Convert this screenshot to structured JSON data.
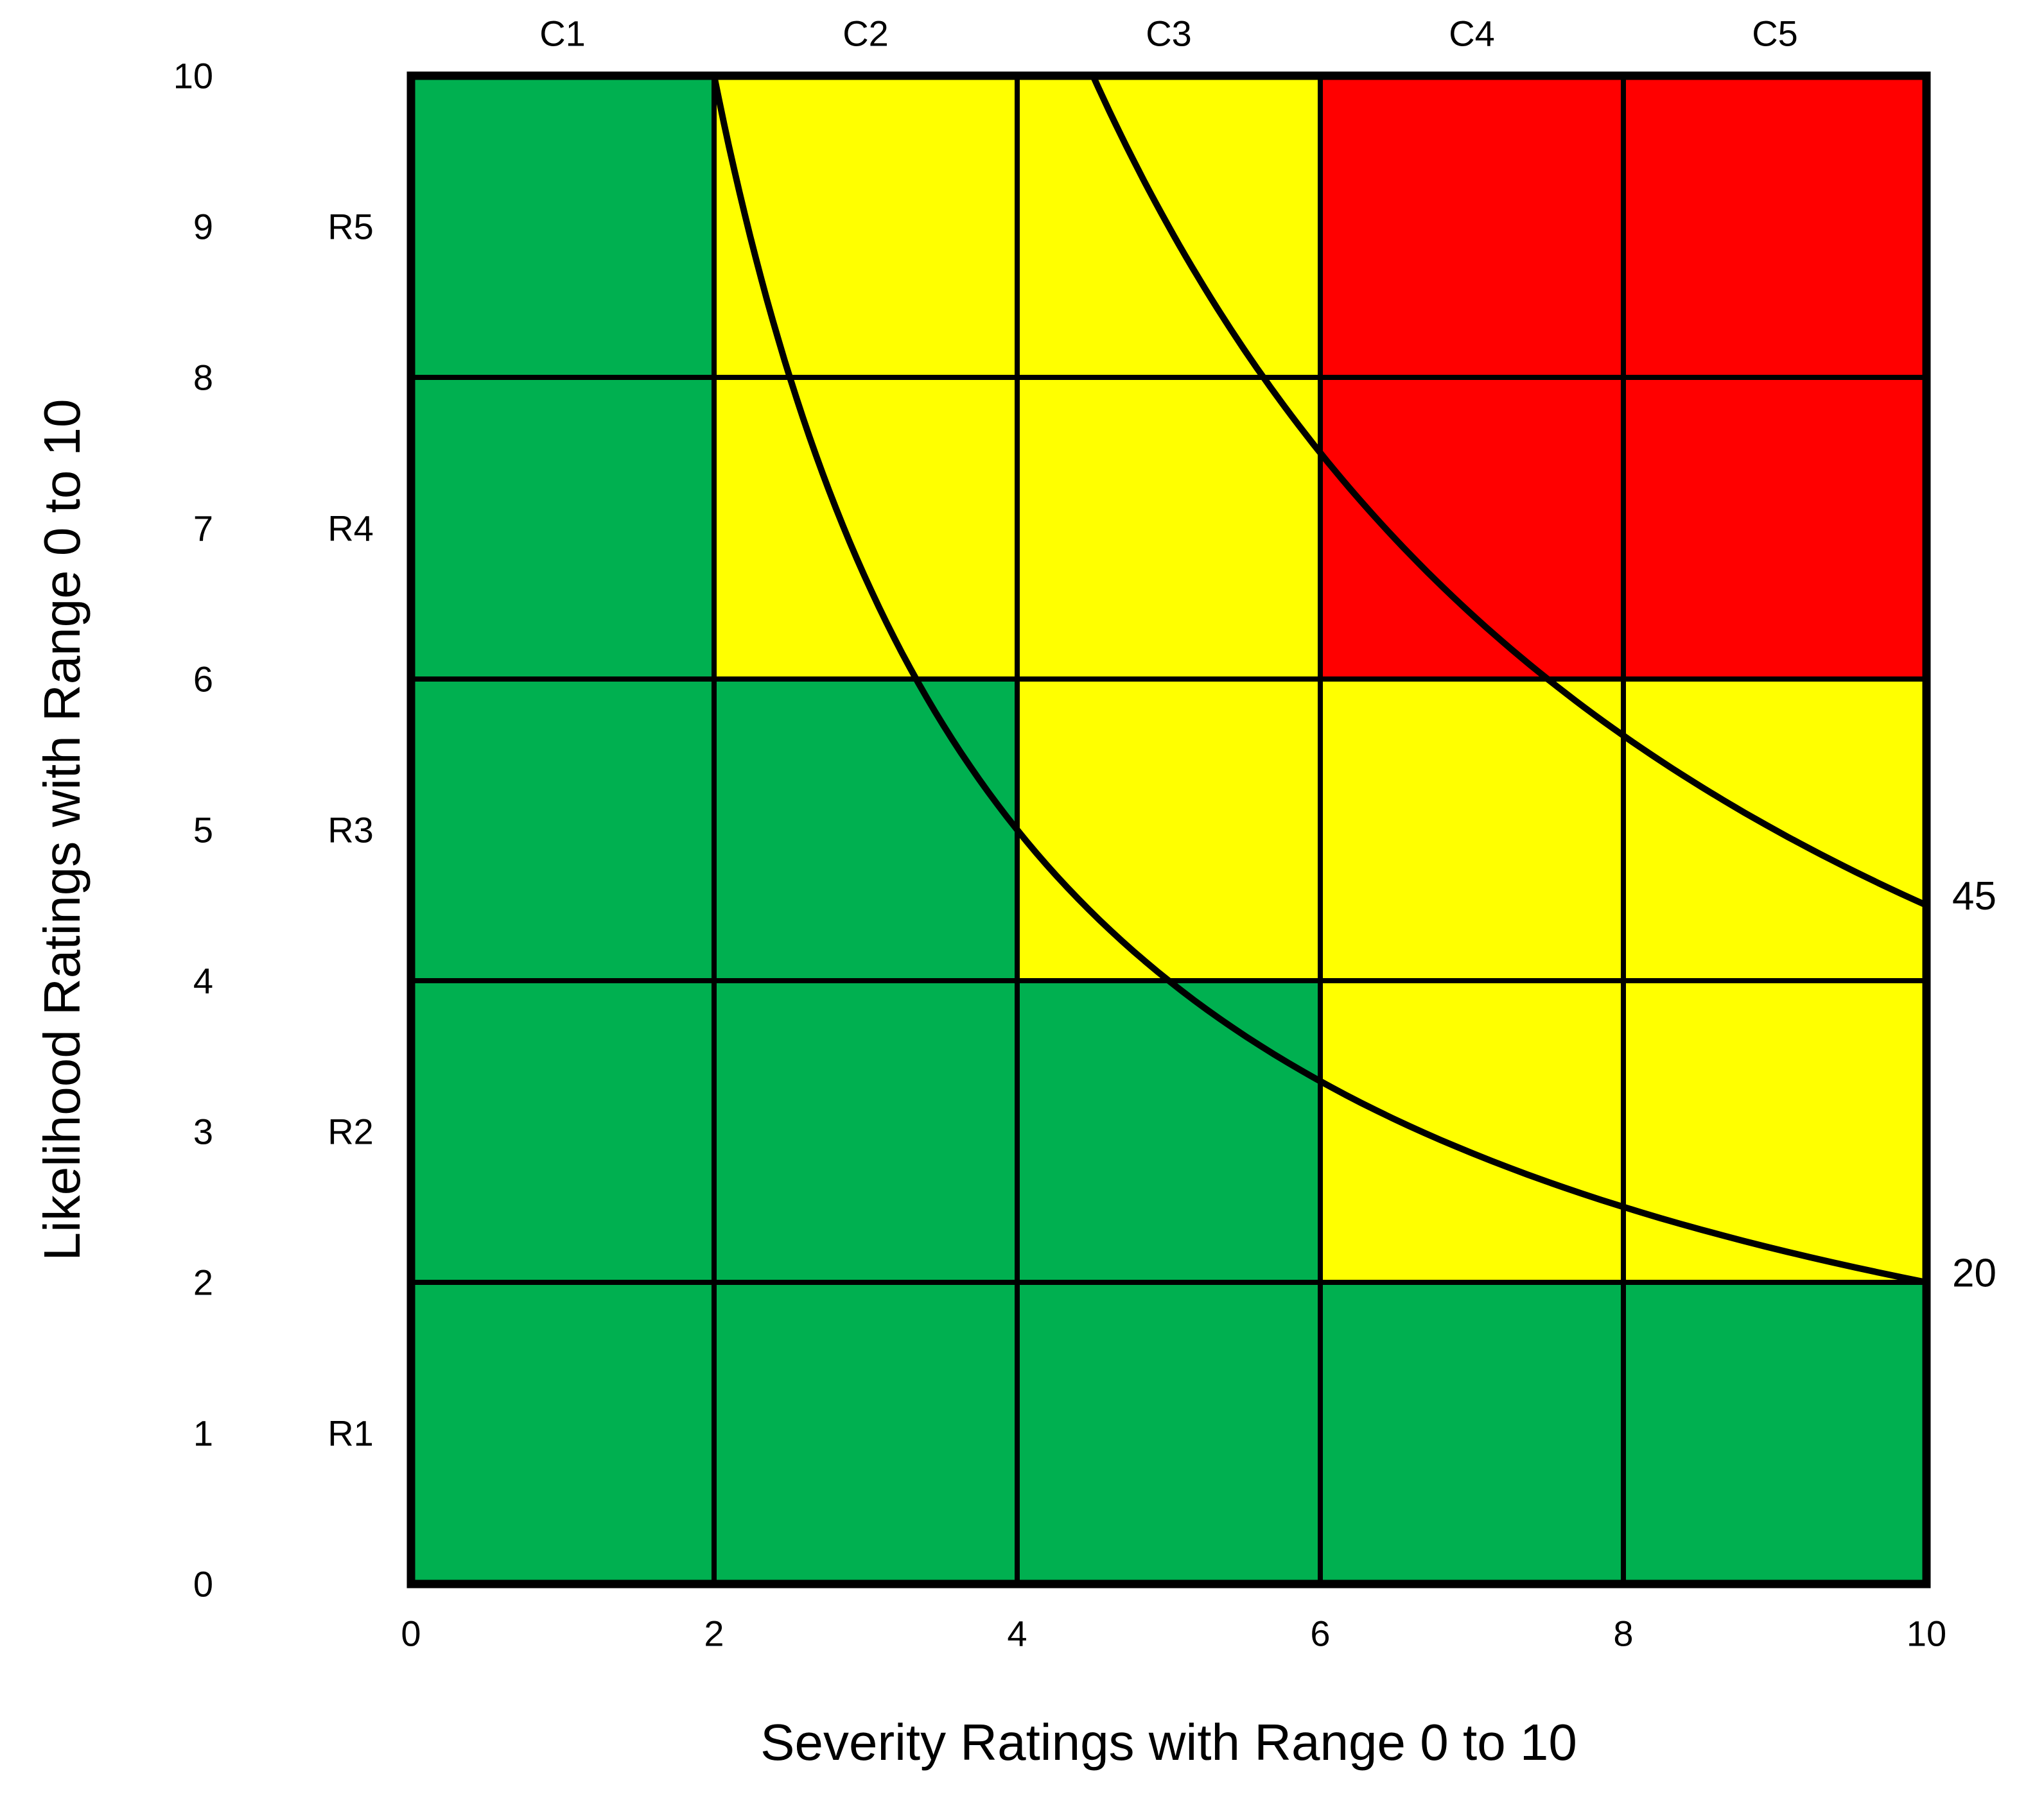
{
  "chart_data": {
    "type": "heatmap",
    "title": "",
    "xlabel": "Severity Ratings with Range 0 to 10",
    "ylabel": "Likelihood Ratings with Range 0 to 10",
    "xlim": [
      0,
      10
    ],
    "ylim": [
      0,
      10
    ],
    "grid": true,
    "grid_step": 2,
    "x_ticks": [
      0,
      2,
      4,
      6,
      8,
      10
    ],
    "y_ticks": [
      10,
      9,
      8,
      7,
      6,
      5,
      4,
      3,
      2,
      1,
      0
    ],
    "col_labels": [
      "C1",
      "C2",
      "C3",
      "C4",
      "C5"
    ],
    "row_labels": [
      "R5",
      "R4",
      "R3",
      "R2",
      "R1"
    ],
    "col_severity_ranges": [
      [
        0,
        2
      ],
      [
        2,
        4
      ],
      [
        4,
        6
      ],
      [
        6,
        8
      ],
      [
        8,
        10
      ]
    ],
    "row_likelihood_ranges": [
      [
        8,
        10
      ],
      [
        6,
        8
      ],
      [
        4,
        6
      ],
      [
        2,
        4
      ],
      [
        0,
        2
      ]
    ],
    "cell_colors": [
      [
        "green",
        "yellow",
        "yellow",
        "red",
        "red"
      ],
      [
        "green",
        "yellow",
        "yellow",
        "red",
        "red"
      ],
      [
        "green",
        "green",
        "yellow",
        "yellow",
        "yellow"
      ],
      [
        "green",
        "green",
        "green",
        "yellow",
        "yellow"
      ],
      [
        "green",
        "green",
        "green",
        "green",
        "green"
      ]
    ],
    "color_hex": {
      "green": "#00B050",
      "yellow": "#FFFF00",
      "red": "#FF0000",
      "line": "#000000",
      "background": "#FFFFFF"
    },
    "iso_risk_curves": [
      {
        "value": 45,
        "label": "45",
        "equation": "severity x likelihood = 45"
      },
      {
        "value": 20,
        "label": "20",
        "equation": "severity x likelihood = 20"
      }
    ],
    "legend_position": "none"
  }
}
